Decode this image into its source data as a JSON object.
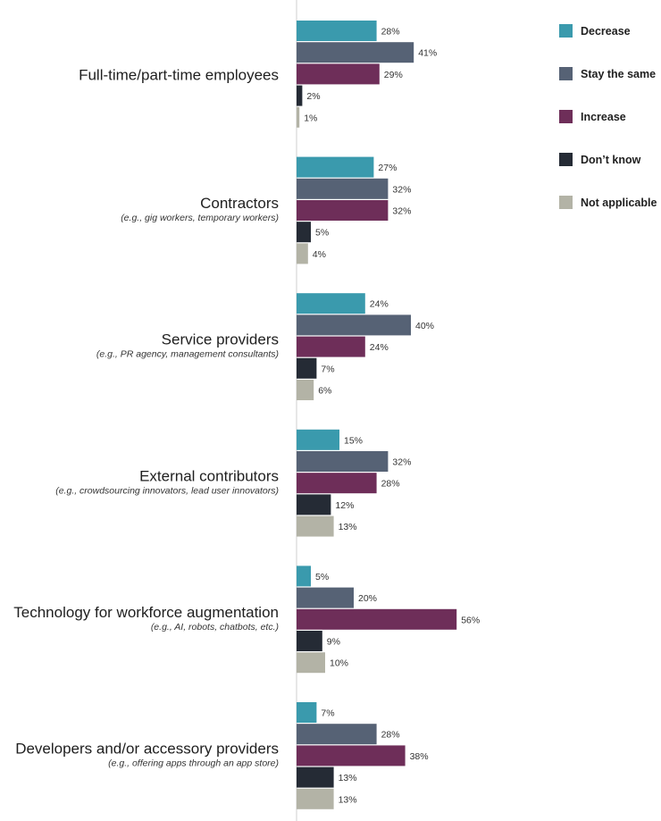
{
  "chart_data": {
    "type": "bar",
    "orientation": "horizontal",
    "categories": [
      "Full-time/part-time employees",
      "Contractors",
      "Service providers",
      "External contributors",
      "Technology for workforce augmentation",
      "Developers and/or accessory providers"
    ],
    "category_subtitles": [
      "",
      "(e.g., gig workers, temporary workers)",
      "(e.g., PR agency, management consultants)",
      "(e.g., crowdsourcing innovators, lead user innovators)",
      "(e.g., AI, robots, chatbots, etc.)",
      "(e.g., offering apps through an app store)"
    ],
    "series": [
      {
        "name": "Decrease",
        "color": "#3a9aad",
        "values": [
          28,
          27,
          24,
          15,
          5,
          7
        ]
      },
      {
        "name": "Stay the same",
        "color": "#566275",
        "values": [
          41,
          32,
          40,
          32,
          20,
          28
        ]
      },
      {
        "name": "Increase",
        "color": "#6e2e59",
        "values": [
          29,
          32,
          24,
          28,
          56,
          38
        ]
      },
      {
        "name": "Don’t know",
        "color": "#252b35",
        "values": [
          2,
          5,
          7,
          12,
          9,
          13
        ]
      },
      {
        "name": "Not applicable",
        "color": "#b3b3a6",
        "values": [
          1,
          4,
          6,
          13,
          10,
          13
        ]
      }
    ],
    "value_suffix": "%",
    "xlim": [
      0,
      100
    ],
    "grid": false,
    "legend_position": "top-right"
  }
}
